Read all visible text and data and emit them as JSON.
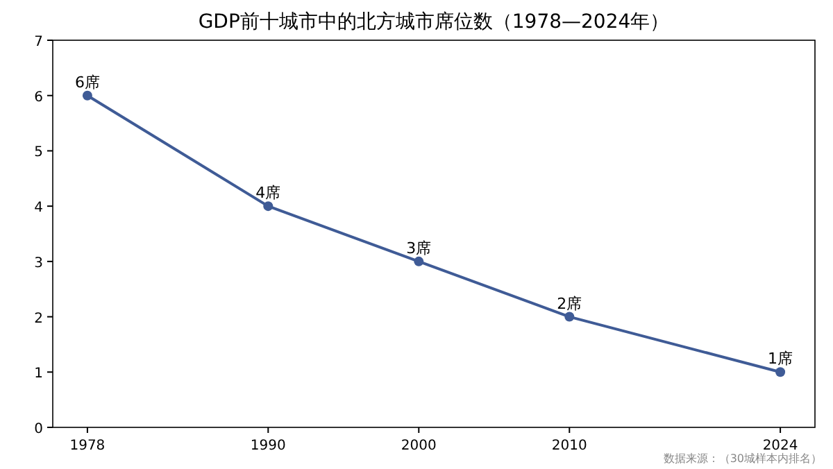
{
  "chart_data": {
    "type": "line",
    "title": "GDP前十城市中的北方城市席位数（1978—2024年）",
    "x": [
      1978,
      1990,
      2000,
      2010,
      2024
    ],
    "series": [
      {
        "color": "#3f5b96",
        "values": [
          6,
          4,
          3,
          2,
          1
        ],
        "value_labels": [
          "6席",
          "4席",
          "3席",
          "2席",
          "1席"
        ]
      }
    ],
    "xlim": [
      1975.7,
      2026.3
    ],
    "xticks": [
      1978,
      1990,
      2000,
      2010,
      2024
    ],
    "ylim": [
      0,
      7
    ],
    "yticks": [
      0,
      1,
      2,
      3,
      4,
      5,
      6,
      7
    ],
    "marker": "circle",
    "line_style": "solid",
    "grid": false,
    "annotations": [
      "数据来源：（30城样本内排名）"
    ]
  }
}
